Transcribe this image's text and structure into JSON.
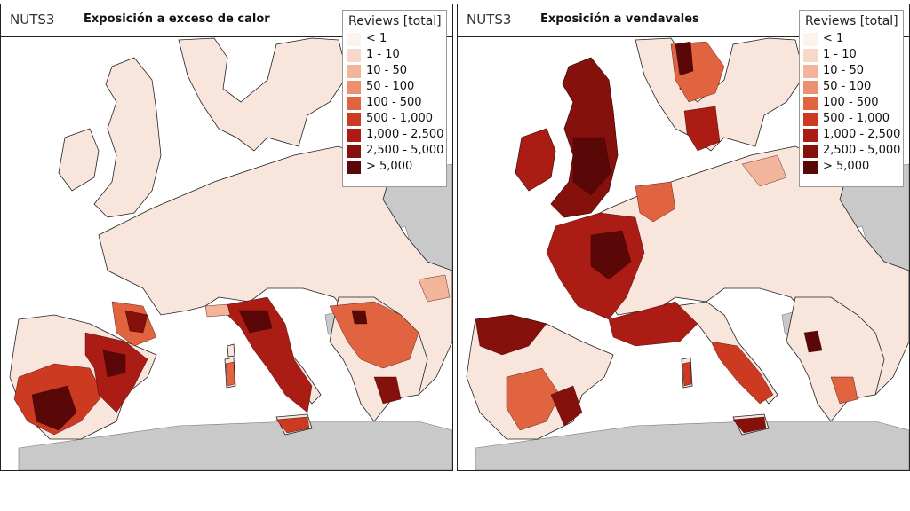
{
  "colors": {
    "background_land": "#f8e6dd",
    "noncovered_land": "#c9c9c9",
    "sea": "#ffffff",
    "classes": [
      "#fdf2ec",
      "#f8d8c8",
      "#f2b49a",
      "#ec9070",
      "#e0643f",
      "#cc3a22",
      "#ab1c14",
      "#86100c",
      "#5a0707"
    ]
  },
  "legend": {
    "title": "Reviews [total]",
    "classes": [
      "< 1",
      "1 - 10",
      "10 - 50",
      "50 - 100",
      "100 - 500",
      "500 - 1,000",
      "1,000 - 2,500",
      "2,500 - 5,000",
      "> 5,000"
    ]
  },
  "panels": [
    {
      "nuts_label": "NUTS3",
      "title": "Exposición a exceso de calor"
    },
    {
      "nuts_label": "NUTS3",
      "title": "Exposición a vendavales"
    }
  ]
}
